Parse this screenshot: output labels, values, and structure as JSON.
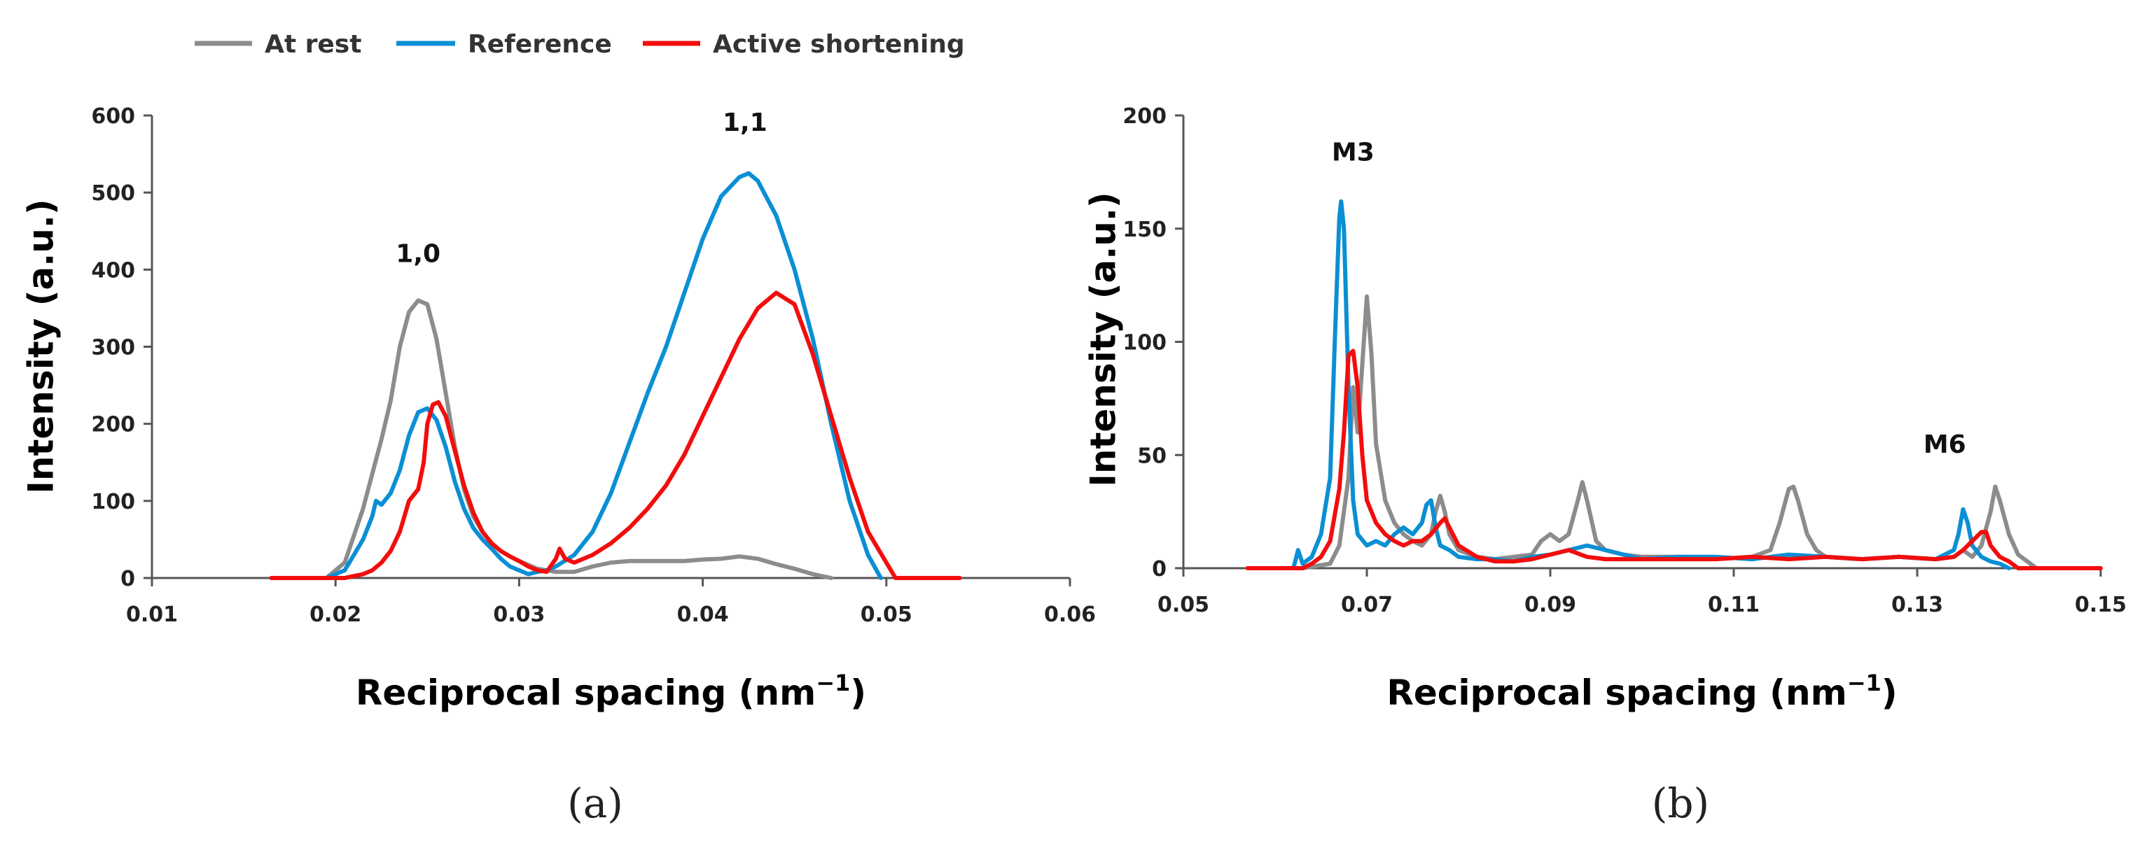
{
  "legend": [
    {
      "label": "At rest",
      "color": "#8c8c8c"
    },
    {
      "label": "Reference",
      "color": "#0a8fd4"
    },
    {
      "label": "Active shortening",
      "color": "#f20d0d"
    }
  ],
  "chart_data": [
    {
      "type": "line",
      "panel_label": "(a)",
      "xlabel": "Reciprocal spacing (nm",
      "xlabel_sup": "−1",
      "xlabel_end": ")",
      "ylabel": "Intensity (a.u.)",
      "xlim": [
        0.01,
        0.06
      ],
      "ylim": [
        0,
        600
      ],
      "xticks": [
        0.01,
        0.02,
        0.03,
        0.04,
        0.05,
        0.06
      ],
      "xtick_labels": [
        "0.01",
        "0.02",
        "0.03",
        "0.04",
        "0.05",
        "0.06"
      ],
      "yticks": [
        0,
        100,
        200,
        300,
        400,
        500,
        600
      ],
      "ytick_labels": [
        "0",
        "100",
        "200",
        "300",
        "400",
        "500",
        "600"
      ],
      "annotations": [
        {
          "text": "1,0",
          "x": 0.0245,
          "y": 410
        },
        {
          "text": "1,1",
          "x": 0.0423,
          "y": 580
        }
      ],
      "series": [
        {
          "name": "At rest",
          "color": "#8c8c8c",
          "x": [
            0.0195,
            0.0205,
            0.0215,
            0.022,
            0.0225,
            0.023,
            0.0235,
            0.024,
            0.0245,
            0.025,
            0.0255,
            0.026,
            0.0265,
            0.027,
            0.0275,
            0.028,
            0.0285,
            0.029,
            0.0295,
            0.03,
            0.031,
            0.032,
            0.033,
            0.034,
            0.035,
            0.036,
            0.037,
            0.038,
            0.039,
            0.04,
            0.041,
            0.042,
            0.043,
            0.044,
            0.045,
            0.046,
            0.047
          ],
          "y": [
            0,
            20,
            90,
            135,
            180,
            230,
            300,
            345,
            360,
            355,
            310,
            240,
            170,
            115,
            80,
            60,
            45,
            35,
            28,
            22,
            12,
            8,
            8,
            15,
            20,
            22,
            22,
            22,
            22,
            24,
            25,
            28,
            25,
            18,
            12,
            5,
            0
          ]
        },
        {
          "name": "Reference",
          "color": "#0a8fd4",
          "x": [
            0.0195,
            0.0205,
            0.021,
            0.0215,
            0.022,
            0.0222,
            0.0225,
            0.023,
            0.0235,
            0.024,
            0.0245,
            0.025,
            0.0255,
            0.026,
            0.0265,
            0.027,
            0.0275,
            0.028,
            0.0285,
            0.029,
            0.0295,
            0.03,
            0.0305,
            0.031,
            0.0315,
            0.032,
            0.033,
            0.034,
            0.035,
            0.036,
            0.037,
            0.038,
            0.039,
            0.04,
            0.041,
            0.042,
            0.0425,
            0.043,
            0.044,
            0.045,
            0.046,
            0.047,
            0.048,
            0.049,
            0.0497
          ],
          "y": [
            0,
            10,
            30,
            50,
            80,
            100,
            95,
            110,
            140,
            185,
            215,
            220,
            205,
            170,
            125,
            90,
            65,
            50,
            38,
            25,
            15,
            10,
            5,
            8,
            10,
            15,
            30,
            60,
            110,
            175,
            240,
            300,
            370,
            440,
            495,
            520,
            525,
            515,
            470,
            400,
            310,
            200,
            100,
            30,
            0
          ]
        },
        {
          "name": "Active shortening",
          "color": "#f20d0d",
          "x": [
            0.0165,
            0.0205,
            0.0215,
            0.022,
            0.0225,
            0.023,
            0.0235,
            0.024,
            0.0245,
            0.0248,
            0.025,
            0.0253,
            0.0256,
            0.026,
            0.0265,
            0.027,
            0.0275,
            0.028,
            0.0285,
            0.029,
            0.0295,
            0.03,
            0.0305,
            0.031,
            0.0315,
            0.032,
            0.0322,
            0.0325,
            0.033,
            0.034,
            0.035,
            0.036,
            0.037,
            0.038,
            0.039,
            0.04,
            0.041,
            0.042,
            0.043,
            0.044,
            0.045,
            0.046,
            0.047,
            0.048,
            0.049,
            0.05,
            0.0505,
            0.054
          ],
          "y": [
            0,
            0,
            5,
            10,
            20,
            35,
            60,
            100,
            115,
            150,
            200,
            225,
            228,
            210,
            165,
            120,
            85,
            60,
            45,
            35,
            28,
            22,
            15,
            10,
            8,
            25,
            38,
            25,
            20,
            30,
            45,
            65,
            90,
            120,
            160,
            210,
            260,
            310,
            350,
            370,
            355,
            290,
            210,
            130,
            60,
            20,
            0,
            0
          ]
        }
      ]
    },
    {
      "type": "line",
      "panel_label": "(b)",
      "xlabel": "Reciprocal spacing (nm",
      "xlabel_sup": "−1",
      "xlabel_end": ")",
      "ylabel": "Intensity (a.u.)",
      "xlim": [
        0.05,
        0.15
      ],
      "ylim": [
        0,
        200
      ],
      "xticks": [
        0.05,
        0.07,
        0.09,
        0.11,
        0.13,
        0.15
      ],
      "xtick_labels": [
        "0.05",
        "0.07",
        "0.09",
        "0.11",
        "0.13",
        "0.15"
      ],
      "yticks": [
        0,
        50,
        100,
        150,
        200
      ],
      "ytick_labels": [
        "0",
        "50",
        "100",
        "150",
        "200"
      ],
      "annotations": [
        {
          "text": "M3",
          "x": 0.0685,
          "y": 180
        },
        {
          "text": "M6",
          "x": 0.133,
          "y": 51
        }
      ],
      "series": [
        {
          "name": "At rest",
          "color": "#8c8c8c",
          "x": [
            0.063,
            0.066,
            0.067,
            0.068,
            0.0685,
            0.069,
            0.0695,
            0.07,
            0.0705,
            0.071,
            0.072,
            0.073,
            0.074,
            0.075,
            0.076,
            0.077,
            0.0775,
            0.078,
            0.0785,
            0.079,
            0.08,
            0.082,
            0.084,
            0.086,
            0.088,
            0.089,
            0.09,
            0.091,
            0.092,
            0.093,
            0.0935,
            0.094,
            0.095,
            0.096,
            0.098,
            0.1,
            0.104,
            0.108,
            0.112,
            0.114,
            0.115,
            0.116,
            0.1165,
            0.117,
            0.118,
            0.119,
            0.12,
            0.124,
            0.128,
            0.132,
            0.134,
            0.135,
            0.136,
            0.137,
            0.138,
            0.1385,
            0.139,
            0.14,
            0.141,
            0.142,
            0.143
          ],
          "y": [
            0,
            2,
            10,
            40,
            80,
            60,
            90,
            120,
            95,
            55,
            30,
            20,
            15,
            12,
            10,
            15,
            25,
            32,
            25,
            15,
            8,
            5,
            4,
            5,
            6,
            12,
            15,
            12,
            15,
            30,
            38,
            30,
            12,
            8,
            6,
            5,
            5,
            4,
            5,
            8,
            20,
            35,
            36,
            30,
            15,
            8,
            5,
            4,
            5,
            4,
            5,
            8,
            5,
            10,
            25,
            36,
            30,
            15,
            6,
            3,
            0
          ]
        },
        {
          "name": "Reference",
          "color": "#0a8fd4",
          "x": [
            0.062,
            0.0625,
            0.063,
            0.064,
            0.065,
            0.066,
            0.0665,
            0.067,
            0.0672,
            0.0675,
            0.068,
            0.0685,
            0.069,
            0.07,
            0.071,
            0.072,
            0.073,
            0.074,
            0.075,
            0.076,
            0.0765,
            0.077,
            0.0775,
            0.078,
            0.079,
            0.08,
            0.082,
            0.084,
            0.086,
            0.088,
            0.09,
            0.092,
            0.094,
            0.096,
            0.098,
            0.1,
            0.104,
            0.108,
            0.112,
            0.116,
            0.12,
            0.124,
            0.128,
            0.132,
            0.134,
            0.1345,
            0.135,
            0.1355,
            0.136,
            0.137,
            0.138,
            0.139,
            0.14
          ],
          "y": [
            0,
            8,
            2,
            5,
            15,
            40,
            100,
            155,
            162,
            150,
            80,
            30,
            15,
            10,
            12,
            10,
            15,
            18,
            15,
            20,
            28,
            30,
            18,
            10,
            8,
            5,
            4,
            4,
            3,
            5,
            6,
            8,
            10,
            8,
            6,
            4,
            5,
            5,
            4,
            6,
            5,
            4,
            5,
            4,
            8,
            15,
            26,
            20,
            10,
            5,
            3,
            2,
            0
          ]
        },
        {
          "name": "Active shortening",
          "color": "#f20d0d",
          "x": [
            0.057,
            0.063,
            0.064,
            0.065,
            0.066,
            0.067,
            0.0675,
            0.068,
            0.0685,
            0.069,
            0.0695,
            0.07,
            0.071,
            0.072,
            0.073,
            0.074,
            0.075,
            0.076,
            0.077,
            0.078,
            0.0785,
            0.079,
            0.08,
            0.082,
            0.084,
            0.086,
            0.088,
            0.09,
            0.092,
            0.094,
            0.096,
            0.1,
            0.104,
            0.108,
            0.112,
            0.116,
            0.12,
            0.124,
            0.128,
            0.132,
            0.134,
            0.135,
            0.136,
            0.137,
            0.1375,
            0.138,
            0.139,
            0.14,
            0.141,
            0.15
          ],
          "y": [
            0,
            0,
            2,
            5,
            12,
            35,
            60,
            94,
            96,
            80,
            50,
            30,
            20,
            15,
            12,
            10,
            12,
            12,
            15,
            20,
            22,
            18,
            10,
            5,
            3,
            3,
            4,
            6,
            8,
            5,
            4,
            4,
            4,
            4,
            5,
            4,
            5,
            4,
            5,
            4,
            5,
            8,
            12,
            16,
            16,
            10,
            5,
            3,
            0,
            0
          ]
        }
      ]
    }
  ]
}
